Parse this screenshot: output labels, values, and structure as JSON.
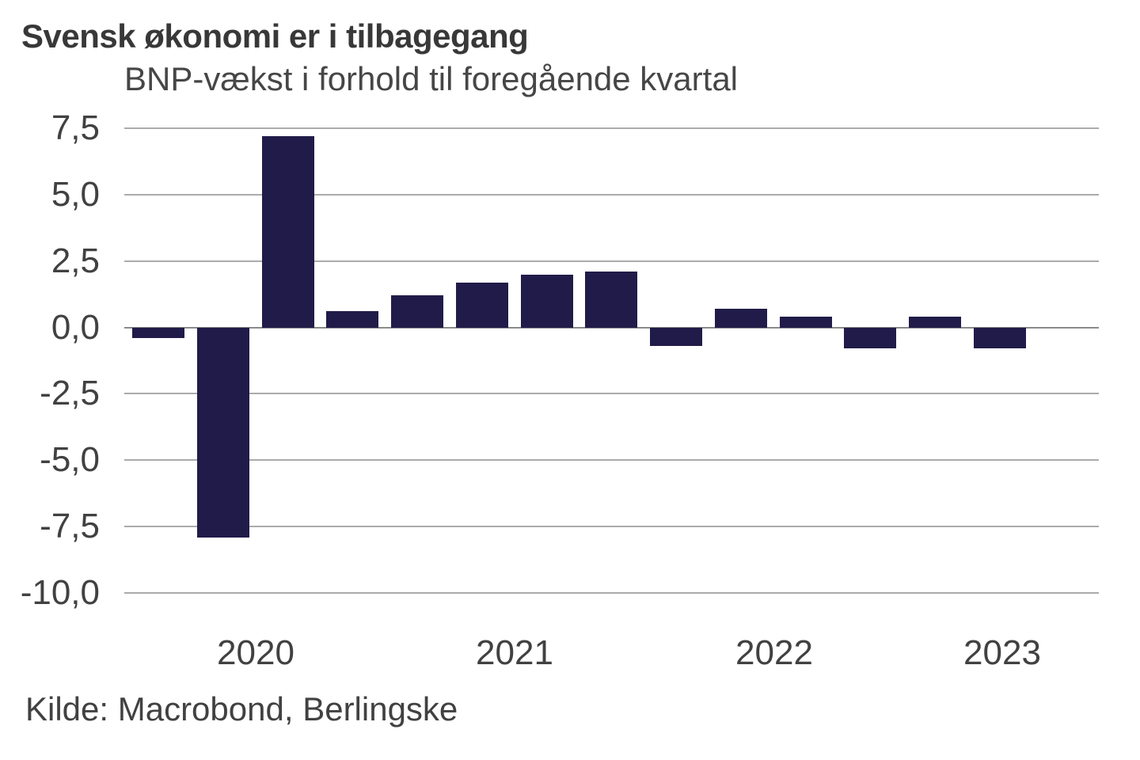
{
  "header": {
    "title": "Svensk økonomi er i tilbagegang",
    "subtitle": "BNP-vækst i forhold til foregående kvartal"
  },
  "footer": {
    "source": "Kilde: Macrobond, Berlingske"
  },
  "colors": {
    "bar": "#211b49",
    "gridline": "#ababab",
    "zero_line": "#8a8a8a",
    "text": "#414141",
    "background": "#ffffff"
  },
  "chart_data": {
    "type": "bar",
    "title": "Svensk økonomi er i tilbagegang",
    "subtitle": "BNP-vækst i forhold til foregående kvartal",
    "categories": [
      "2020 Q1",
      "2020 Q2",
      "2020 Q3",
      "2020 Q4",
      "2021 Q1",
      "2021 Q2",
      "2021 Q3",
      "2021 Q4",
      "2022 Q1",
      "2022 Q2",
      "2022 Q3",
      "2022 Q4",
      "2023 Q1",
      "2023 Q2"
    ],
    "values": [
      -0.4,
      -7.9,
      7.2,
      0.6,
      1.2,
      1.7,
      2.0,
      2.1,
      -0.7,
      0.7,
      0.4,
      -0.8,
      0.4,
      -0.8
    ],
    "x_tick_labels": [
      "2020",
      "2021",
      "2022",
      "2023"
    ],
    "y_ticks": [
      7.5,
      5.0,
      2.5,
      0.0,
      -2.5,
      -5.0,
      -7.5,
      -10.0
    ],
    "y_tick_labels": [
      "7,5",
      "5,0",
      "2,5",
      "0,0",
      "-2,5",
      "-5,0",
      "-7,5",
      "-10,0"
    ],
    "ylim": [
      -10.0,
      7.5
    ],
    "xlabel": "",
    "ylabel": "",
    "grid": "horizontal",
    "legend": "none",
    "source": "Kilde: Macrobond, Berlingske"
  }
}
